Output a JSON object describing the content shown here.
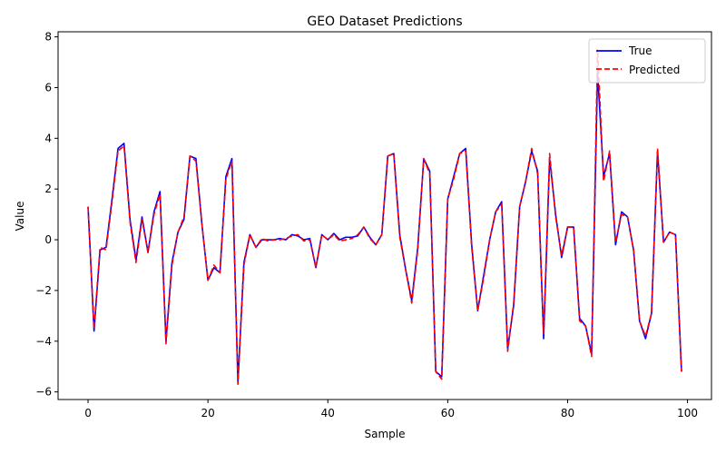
{
  "chart_data": {
    "type": "line",
    "title": "GEO Dataset Predictions",
    "xlabel": "Sample",
    "ylabel": "Value",
    "xlim": [
      -5,
      104
    ],
    "ylim": [
      -6.3,
      8.2
    ],
    "xticks": [
      0,
      20,
      40,
      60,
      80,
      100
    ],
    "yticks": [
      -6,
      -4,
      -2,
      0,
      2,
      4,
      6,
      8
    ],
    "legend_position": "top-right",
    "grid": false,
    "series": [
      {
        "name": "True",
        "color": "#0000ff",
        "style": "solid",
        "values": [
          1.3,
          -3.6,
          -0.4,
          -0.3,
          1.6,
          3.6,
          3.8,
          0.8,
          -0.8,
          0.9,
          -0.5,
          1.1,
          1.9,
          -4.0,
          -0.9,
          0.3,
          0.8,
          3.3,
          3.2,
          0.6,
          -1.6,
          -1.1,
          -1.3,
          2.5,
          3.2,
          -5.6,
          -0.9,
          0.2,
          -0.3,
          0.0,
          0.0,
          0.0,
          0.05,
          0.0,
          0.2,
          0.15,
          0.0,
          0.05,
          -1.1,
          0.2,
          0.0,
          0.25,
          0.0,
          0.1,
          0.1,
          0.15,
          0.5,
          0.1,
          -0.2,
          0.2,
          3.3,
          3.4,
          0.2,
          -1.2,
          -2.4,
          -0.3,
          3.2,
          2.7,
          -5.2,
          -5.4,
          1.6,
          2.5,
          3.4,
          3.6,
          -0.2,
          -2.8,
          -1.4,
          0.0,
          1.1,
          1.5,
          -4.3,
          -2.6,
          1.3,
          2.3,
          3.5,
          2.7,
          -3.9,
          3.2,
          1.0,
          -0.7,
          0.5,
          0.5,
          -3.1,
          -3.4,
          -4.5,
          6.6,
          2.5,
          3.4,
          -0.2,
          1.1,
          0.9,
          -0.4,
          -3.2,
          -3.9,
          -2.9,
          3.5,
          -0.1,
          0.3,
          0.2,
          -5.2
        ]
      },
      {
        "name": "Predicted",
        "color": "#ff0000",
        "style": "dashed",
        "values": [
          1.3,
          -3.5,
          -0.3,
          -0.4,
          1.5,
          3.5,
          3.7,
          0.7,
          -0.9,
          0.8,
          -0.5,
          1.0,
          1.8,
          -4.1,
          -1.0,
          0.3,
          0.9,
          3.3,
          3.1,
          0.6,
          -1.6,
          -1.0,
          -1.3,
          2.4,
          3.1,
          -5.7,
          -1.0,
          0.2,
          -0.3,
          0.05,
          -0.05,
          0.0,
          0.0,
          0.05,
          0.15,
          0.2,
          -0.05,
          0.0,
          -1.1,
          0.2,
          0.0,
          0.2,
          -0.05,
          0.0,
          0.05,
          0.2,
          0.5,
          0.05,
          -0.2,
          0.2,
          3.3,
          3.4,
          0.1,
          -1.2,
          -2.5,
          -0.4,
          3.2,
          2.6,
          -5.2,
          -5.5,
          1.6,
          2.4,
          3.4,
          3.5,
          -0.3,
          -2.8,
          -1.5,
          0.0,
          1.1,
          1.4,
          -4.4,
          -2.5,
          1.3,
          2.3,
          3.6,
          2.6,
          -3.7,
          3.4,
          0.9,
          -0.6,
          0.5,
          0.5,
          -3.2,
          -3.4,
          -4.6,
          7.5,
          2.3,
          3.5,
          -0.1,
          1.0,
          0.9,
          -0.4,
          -3.2,
          -3.8,
          -2.9,
          3.6,
          -0.1,
          0.3,
          0.2,
          -5.2
        ]
      }
    ]
  }
}
